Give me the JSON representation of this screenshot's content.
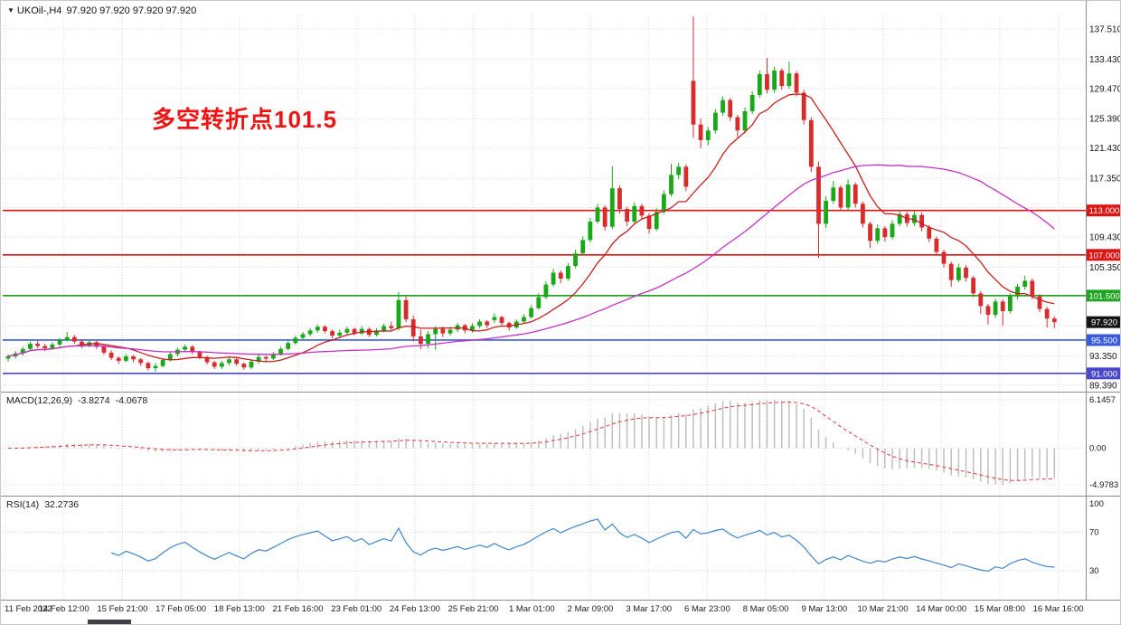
{
  "window": {
    "dropdown_icon": "▼",
    "symbol_timeframe": "UKOil-,H4",
    "ohlc_text": "97.920 97.920 97.920 97.920"
  },
  "annotation": {
    "text": "多空转折点101.5",
    "color": "#ee1313"
  },
  "colors": {
    "bull": "#18a818",
    "bear": "#d92b2b",
    "grid": "#d9d9d9",
    "border": "#8c8c8c",
    "background": "#ffffff"
  },
  "chart_data": {
    "type": "candlestick",
    "symbol": "UKOil",
    "timeframe": "H4",
    "title": "UKOil-,H4",
    "current_ohlc": {
      "open": "97.920",
      "high": "97.920",
      "low": "97.920",
      "close": "97.920"
    },
    "ylim": [
      89.39,
      137.51
    ],
    "y_ticks": [
      {
        "value": 137.51,
        "label": "137.510",
        "show_label": true
      },
      {
        "value": 133.43,
        "label": "133.430",
        "show_label": true
      },
      {
        "value": 129.47,
        "label": "129.470",
        "show_label": true
      },
      {
        "value": 125.39,
        "label": "125.390",
        "show_label": true
      },
      {
        "value": 121.43,
        "label": "121.430",
        "show_label": true
      },
      {
        "value": 117.35,
        "label": "117.350",
        "show_label": true
      },
      {
        "value": 113.39,
        "label": "113.390",
        "show_label": false
      },
      {
        "value": 109.43,
        "label": "109.430",
        "show_label": true
      },
      {
        "value": 105.35,
        "label": "105.350",
        "show_label": true
      },
      {
        "value": 101.39,
        "label": "101.390",
        "show_label": false
      },
      {
        "value": 97.43,
        "label": "97.430",
        "show_label": false
      },
      {
        "value": 93.35,
        "label": "93.350",
        "show_label": true
      },
      {
        "value": 89.39,
        "label": "89.390",
        "show_label": true
      }
    ],
    "x_labels": [
      "11 Feb 2022",
      "14 Feb 12:00",
      "15 Feb 21:00",
      "17 Feb 05:00",
      "18 Feb 13:00",
      "21 Feb 16:00",
      "23 Feb 01:00",
      "24 Feb 13:00",
      "25 Feb 21:00",
      "1 Mar 01:00",
      "2 Mar 09:00",
      "3 Mar 17:00",
      "6 Mar 23:00",
      "8 Mar 05:00",
      "9 Mar 13:00",
      "10 Mar 21:00",
      "14 Mar 00:00",
      "15 Mar 08:00",
      "16 Mar 16:00"
    ],
    "levels": [
      {
        "value": 113.0,
        "label": "113.000",
        "color": "#dc1414"
      },
      {
        "value": 107.0,
        "label": "107.000",
        "color": "#dc1414"
      },
      {
        "value": 101.5,
        "label": "101.500",
        "color": "#1fa51f"
      },
      {
        "value": 95.5,
        "label": "95.500",
        "color": "#3a5bd9"
      },
      {
        "value": 91.0,
        "label": "91.000",
        "color": "#4848c8"
      }
    ],
    "current_price": {
      "value": 97.92,
      "label": "97.920",
      "badge_color": "#151515"
    },
    "moving_averages": [
      {
        "name": "ma-fast",
        "period": 10,
        "color": "#c81e1e"
      },
      {
        "name": "ma-slow",
        "period": 40,
        "color": "#c62fc6"
      }
    ],
    "macd": {
      "label": "MACD(12,26,9)",
      "main_value": "-3.8274",
      "signal_value": "-4.0678",
      "fast": 12,
      "slow": 26,
      "signal_period": 9,
      "axis_labels": {
        "top": "6.1457",
        "zero": "0.00",
        "bottom": "-4.9783"
      },
      "histogram_color": "#bfbfbf",
      "signal_color": "#e03636"
    },
    "rsi": {
      "label": "RSI(14)",
      "value": "32.2736",
      "period": 14,
      "axis_labels": [
        "100",
        "70",
        "30"
      ],
      "guide_levels": [
        70,
        30
      ],
      "line_color": "#3f86c8"
    },
    "candles": [
      [
        93.0,
        93.6,
        92.6,
        93.3
      ],
      [
        93.3,
        94.0,
        93.0,
        93.7
      ],
      [
        93.7,
        94.6,
        93.4,
        94.3
      ],
      [
        94.3,
        95.3,
        94.1,
        95.0
      ],
      [
        95.0,
        95.4,
        94.4,
        94.7
      ],
      [
        94.7,
        95.0,
        94.0,
        94.4
      ],
      [
        94.4,
        95.2,
        94.2,
        94.9
      ],
      [
        94.9,
        95.8,
        94.6,
        95.5
      ],
      [
        95.5,
        96.6,
        95.3,
        95.9
      ],
      [
        95.9,
        96.2,
        95.0,
        95.3
      ],
      [
        95.3,
        95.6,
        94.4,
        94.8
      ],
      [
        94.8,
        95.5,
        94.5,
        95.2
      ],
      [
        95.2,
        95.4,
        94.3,
        94.6
      ],
      [
        94.6,
        94.8,
        93.5,
        93.8
      ],
      [
        93.8,
        94.1,
        92.8,
        93.1
      ],
      [
        93.1,
        93.3,
        92.3,
        92.7
      ],
      [
        92.7,
        93.6,
        92.5,
        93.3
      ],
      [
        93.3,
        93.5,
        92.5,
        92.9
      ],
      [
        92.9,
        93.1,
        92.0,
        92.4
      ],
      [
        92.4,
        92.6,
        91.4,
        91.7
      ],
      [
        91.7,
        92.4,
        91.2,
        92.0
      ],
      [
        92.0,
        93.1,
        91.8,
        92.8
      ],
      [
        92.8,
        93.9,
        92.6,
        93.6
      ],
      [
        93.6,
        94.5,
        93.3,
        94.2
      ],
      [
        94.2,
        94.9,
        93.9,
        94.6
      ],
      [
        94.6,
        94.8,
        93.6,
        93.9
      ],
      [
        93.9,
        94.1,
        92.9,
        93.2
      ],
      [
        93.2,
        93.4,
        92.2,
        92.5
      ],
      [
        92.5,
        92.7,
        91.6,
        91.9
      ],
      [
        91.9,
        92.7,
        91.6,
        92.4
      ],
      [
        92.4,
        93.2,
        92.1,
        92.9
      ],
      [
        92.9,
        93.1,
        92.0,
        92.3
      ],
      [
        92.3,
        92.5,
        91.5,
        91.8
      ],
      [
        91.8,
        92.9,
        91.6,
        92.6
      ],
      [
        92.6,
        93.5,
        92.3,
        93.2
      ],
      [
        93.2,
        93.4,
        92.6,
        93.0
      ],
      [
        93.0,
        93.9,
        92.8,
        93.6
      ],
      [
        93.6,
        94.6,
        93.4,
        94.3
      ],
      [
        94.3,
        95.4,
        94.1,
        95.1
      ],
      [
        95.1,
        96.1,
        94.9,
        95.8
      ],
      [
        95.8,
        96.6,
        95.5,
        96.3
      ],
      [
        96.3,
        97.1,
        96.0,
        96.8
      ],
      [
        96.8,
        97.6,
        96.5,
        97.3
      ],
      [
        97.3,
        97.5,
        96.4,
        96.7
      ],
      [
        96.7,
        96.9,
        95.7,
        96.1
      ],
      [
        96.1,
        96.9,
        95.8,
        96.5
      ],
      [
        96.5,
        97.3,
        96.2,
        97.0
      ],
      [
        97.0,
        97.2,
        96.1,
        96.4
      ],
      [
        96.4,
        97.4,
        96.2,
        97.0
      ],
      [
        97.0,
        97.2,
        95.9,
        96.2
      ],
      [
        96.2,
        97.1,
        96.0,
        96.8
      ],
      [
        96.8,
        97.7,
        96.5,
        97.4
      ],
      [
        97.4,
        98.0,
        96.8,
        97.1
      ],
      [
        97.1,
        102.0,
        96.8,
        100.9
      ],
      [
        100.9,
        101.4,
        97.9,
        98.3
      ],
      [
        98.3,
        98.8,
        95.3,
        96.0
      ],
      [
        96.0,
        96.9,
        94.3,
        95.0
      ],
      [
        95.0,
        96.7,
        94.4,
        96.3
      ],
      [
        96.3,
        97.4,
        94.2,
        97.0
      ],
      [
        97.0,
        97.3,
        95.9,
        96.4
      ],
      [
        96.4,
        97.3,
        96.1,
        96.9
      ],
      [
        96.9,
        97.8,
        96.6,
        97.5
      ],
      [
        97.5,
        97.7,
        96.4,
        96.8
      ],
      [
        96.8,
        97.8,
        96.5,
        97.4
      ],
      [
        97.4,
        98.3,
        97.1,
        98.0
      ],
      [
        98.0,
        98.2,
        97.1,
        97.5
      ],
      [
        98.2,
        99.1,
        97.8,
        98.6
      ],
      [
        98.6,
        98.8,
        97.4,
        97.8
      ],
      [
        97.8,
        98.0,
        96.8,
        97.2
      ],
      [
        97.2,
        98.3,
        97.0,
        98.0
      ],
      [
        98.0,
        99.0,
        97.7,
        98.6
      ],
      [
        98.6,
        100.2,
        98.4,
        99.8
      ],
      [
        99.8,
        101.8,
        99.6,
        101.3
      ],
      [
        101.3,
        103.4,
        101.0,
        103.0
      ],
      [
        103.0,
        105.1,
        102.7,
        104.6
      ],
      [
        104.6,
        104.9,
        103.2,
        103.8
      ],
      [
        103.8,
        105.9,
        103.5,
        105.5
      ],
      [
        105.5,
        107.7,
        105.2,
        107.2
      ],
      [
        107.2,
        109.5,
        106.9,
        109.0
      ],
      [
        109.0,
        112.0,
        108.7,
        111.5
      ],
      [
        111.5,
        113.9,
        111.2,
        113.4
      ],
      [
        113.4,
        113.7,
        110.3,
        110.8
      ],
      [
        110.8,
        119.0,
        110.5,
        116.0
      ],
      [
        116.0,
        116.4,
        112.6,
        113.2
      ],
      [
        113.2,
        113.5,
        110.9,
        111.5
      ],
      [
        111.5,
        114.1,
        111.2,
        113.6
      ],
      [
        113.6,
        113.9,
        111.8,
        112.3
      ],
      [
        112.3,
        112.6,
        109.9,
        110.5
      ],
      [
        110.5,
        113.3,
        110.2,
        112.8
      ],
      [
        112.8,
        115.7,
        112.5,
        115.2
      ],
      [
        115.2,
        119.3,
        114.9,
        117.8
      ],
      [
        117.8,
        119.4,
        117.2,
        118.9
      ],
      [
        118.9,
        119.2,
        115.6,
        116.2
      ],
      [
        130.5,
        139.2,
        122.8,
        124.6
      ],
      [
        124.6,
        125.4,
        121.4,
        122.5
      ],
      [
        122.5,
        124.3,
        121.8,
        123.8
      ],
      [
        123.8,
        126.7,
        123.4,
        126.2
      ],
      [
        126.2,
        128.4,
        125.8,
        127.9
      ],
      [
        127.9,
        128.2,
        125.1,
        125.6
      ],
      [
        125.6,
        125.9,
        122.9,
        123.8
      ],
      [
        123.8,
        126.9,
        123.4,
        126.4
      ],
      [
        126.4,
        129.1,
        126.0,
        128.6
      ],
      [
        128.6,
        131.9,
        128.2,
        131.4
      ],
      [
        131.4,
        133.6,
        128.8,
        129.3
      ],
      [
        129.3,
        132.4,
        128.9,
        131.9
      ],
      [
        131.9,
        132.2,
        129.3,
        129.8
      ],
      [
        129.8,
        133.1,
        129.4,
        131.5
      ],
      [
        131.5,
        131.8,
        128.4,
        128.9
      ],
      [
        128.9,
        129.3,
        124.6,
        125.2
      ],
      [
        125.2,
        125.6,
        118.2,
        118.9
      ],
      [
        118.9,
        119.6,
        106.6,
        111.2
      ],
      [
        111.2,
        114.9,
        110.6,
        114.3
      ],
      [
        114.3,
        117.0,
        113.9,
        116.1
      ],
      [
        116.1,
        116.4,
        112.9,
        113.4
      ],
      [
        113.4,
        117.2,
        113.1,
        116.5
      ],
      [
        116.5,
        116.8,
        113.4,
        113.9
      ],
      [
        113.9,
        114.2,
        110.7,
        111.2
      ],
      [
        111.2,
        111.5,
        107.9,
        108.9
      ],
      [
        108.9,
        111.1,
        108.5,
        110.6
      ],
      [
        110.6,
        110.9,
        108.8,
        109.4
      ],
      [
        109.4,
        111.7,
        109.1,
        111.2
      ],
      [
        111.2,
        113.1,
        110.9,
        112.5
      ],
      [
        112.5,
        112.8,
        110.8,
        111.3
      ],
      [
        111.3,
        112.9,
        110.9,
        112.4
      ],
      [
        112.4,
        112.7,
        110.2,
        110.7
      ],
      [
        110.7,
        111.0,
        108.7,
        109.2
      ],
      [
        109.2,
        109.5,
        106.9,
        107.4
      ],
      [
        107.4,
        107.7,
        105.3,
        105.8
      ],
      [
        105.8,
        106.1,
        102.7,
        103.6
      ],
      [
        103.6,
        105.8,
        103.3,
        105.3
      ],
      [
        105.3,
        105.6,
        103.4,
        103.9
      ],
      [
        103.9,
        104.2,
        101.3,
        101.8
      ],
      [
        101.8,
        102.1,
        99.0,
        100.1
      ],
      [
        100.1,
        100.4,
        97.6,
        98.9
      ],
      [
        98.9,
        101.1,
        98.5,
        100.7
      ],
      [
        100.7,
        101.0,
        97.4,
        99.4
      ],
      [
        99.4,
        101.8,
        99.1,
        101.4
      ],
      [
        101.4,
        103.1,
        101.0,
        102.7
      ],
      [
        102.7,
        104.2,
        102.3,
        103.5
      ],
      [
        103.5,
        103.8,
        101.0,
        101.4
      ],
      [
        101.4,
        101.7,
        99.3,
        99.7
      ],
      [
        99.7,
        100.0,
        97.2,
        98.4
      ],
      [
        98.4,
        98.7,
        97.1,
        97.92
      ]
    ]
  }
}
